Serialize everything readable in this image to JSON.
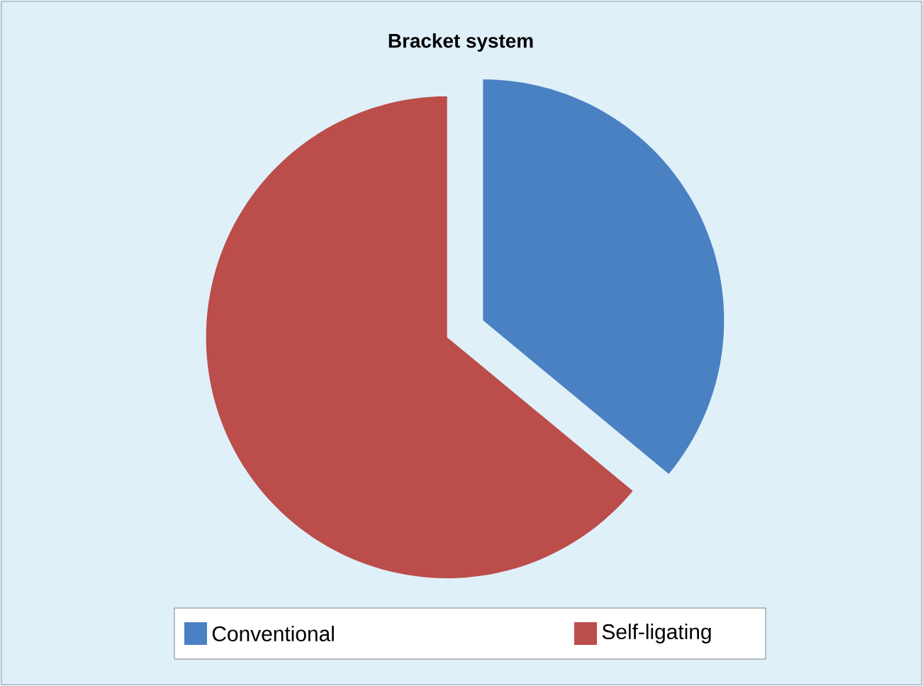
{
  "chart_data": {
    "type": "pie",
    "title": "Bracket system",
    "categories": [
      "Conventional",
      "Self-ligating"
    ],
    "values": [
      36,
      64
    ],
    "colors": [
      "#4a81c2",
      "#bb4d4b"
    ],
    "legend": "bottom"
  }
}
